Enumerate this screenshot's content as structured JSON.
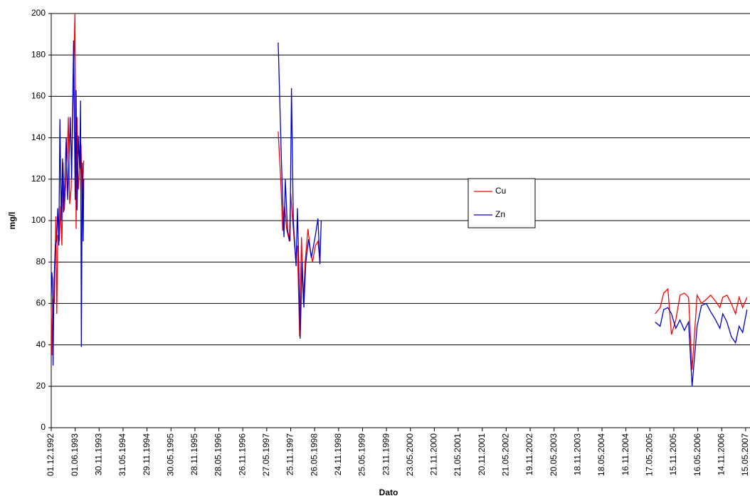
{
  "chart_data": {
    "type": "line",
    "xlabel": "Dato",
    "ylabel": "mg/l",
    "ylim": [
      0,
      200
    ],
    "yticks": [
      0,
      20,
      40,
      60,
      80,
      100,
      120,
      140,
      160,
      180,
      200
    ],
    "xlim": [
      "01.12.1992",
      "17.06.2007"
    ],
    "xticks": [
      "01.12.1992",
      "01.06.1993",
      "30.11.1993",
      "31.05.1994",
      "29.11.1994",
      "30.05.1995",
      "28.11.1995",
      "28.05.1996",
      "26.11.1996",
      "27.05.1997",
      "25.11.1997",
      "26.05.1998",
      "24.11.1998",
      "25.05.1999",
      "23.11.1999",
      "23.05.2000",
      "21.11.2000",
      "21.05.2001",
      "20.11.2001",
      "21.05.2002",
      "19.11.2002",
      "20.05.2003",
      "18.11.2003",
      "18.05.2004",
      "16.11.2004",
      "17.05.2005",
      "15.11.2005",
      "16.05.2006",
      "14.11.2006",
      "15.05.2007"
    ],
    "grid": true,
    "legend": "right",
    "series": [
      {
        "name": "Cu",
        "color": "#ff0000",
        "x": [
          "01.12.1992",
          "06.12.1992",
          "14.12.1992",
          "25.12.1992",
          "05.01.1993",
          "12.01.1993",
          "20.01.1993",
          "01.02.1993",
          "10.02.1993",
          "20.02.1993",
          "01.03.1993",
          "10.03.1993",
          "20.03.1993",
          "01.04.1993",
          "10.04.1993",
          "20.04.1993",
          "01.05.1993",
          "20.05.1993",
          "30.05.1993",
          "08.06.1993",
          "15.06.1993",
          "25.06.1993",
          "05.07.1993",
          "15.07.1993",
          "25.07.1993",
          "05.08.1993",
          null,
          "22.08.1997",
          "10.09.1997",
          "25.09.1997",
          "10.10.1997",
          "25.10.1997",
          "15.11.1997",
          "25.11.1997",
          "10.12.1997",
          "01.01.1998",
          "15.01.1998",
          "01.02.1998",
          "15.02.1998",
          "01.03.1998",
          "15.03.1998",
          "05.04.1998",
          "25.04.1998",
          "10.05.1998",
          "01.06.1998",
          "20.06.1998",
          "05.07.1998",
          null,
          "26.06.2005",
          "03.08.2005",
          "30.08.2005",
          "01.10.2005",
          "28.10.2005",
          "30.11.2005",
          "01.01.2006",
          "03.02.2006",
          "07.03.2006",
          "03.04.2006",
          "11.05.2006",
          "13.06.2006",
          "20.07.2006",
          "22.08.2006",
          "29.09.2006",
          "31.10.2006",
          "22.11.2006",
          "24.12.2006",
          "26.01.2007",
          "27.02.2007",
          "26.03.2007",
          "22.04.2007",
          "25.05.2007"
        ],
        "values": [
          58,
          35,
          62,
          60,
          102,
          55,
          93,
          90,
          107,
          88,
          128,
          105,
          115,
          130,
          150,
          108,
          115,
          170,
          200,
          96,
          150,
          115,
          125,
          137,
          110,
          129,
          null,
          143,
          120,
          95,
          107,
          96,
          90,
          113,
          100,
          82,
          88,
          44,
          92,
          60,
          80,
          96,
          85,
          80,
          88,
          90,
          80,
          null,
          55,
          58,
          65,
          67,
          45,
          52,
          64,
          65,
          63,
          28,
          64,
          60,
          62,
          64,
          61,
          58,
          63,
          64,
          60,
          55,
          63,
          58,
          63
        ]
      },
      {
        "name": "Zn",
        "color": "#0000cc",
        "x": [
          "01.12.1992",
          "05.12.1992",
          "10.12.1992",
          "15.12.1992",
          "22.12.1992",
          "01.01.1993",
          "10.01.1993",
          "20.01.1993",
          "28.01.1993",
          "05.02.1993",
          "15.02.1993",
          "25.02.1993",
          "05.03.1993",
          "15.03.1993",
          "25.03.1993",
          "05.04.1993",
          "15.04.1993",
          "25.04.1993",
          "05.05.1993",
          "20.05.1993",
          "01.06.1993",
          "08.06.1993",
          "15.06.1993",
          "25.06.1993",
          "05.07.1993",
          "12.07.1993",
          "18.07.1993",
          "25.07.1993",
          "01.08.1993",
          "05.08.1993",
          null,
          "22.08.1997",
          "15.09.1997",
          "05.10.1997",
          "15.10.1997",
          "01.11.1997",
          "20.11.1997",
          "01.12.1997",
          "15.12.1997",
          "05.01.1998",
          "15.01.1998",
          "25.01.1998",
          "05.02.1998",
          "20.02.1998",
          "05.03.1998",
          "20.03.1998",
          "10.04.1998",
          "01.05.1998",
          "01.06.1998",
          "20.06.1998",
          "05.07.1998",
          "15.07.1998",
          null,
          "26.06.2005",
          "03.08.2005",
          "30.08.2005",
          "01.10.2005",
          "28.10.2005",
          "30.11.2005",
          "01.01.2006",
          "03.02.2006",
          "07.03.2006",
          "03.04.2006",
          "11.05.2006",
          "13.06.2006",
          "20.07.2006",
          "22.08.2006",
          "29.09.2006",
          "31.10.2006",
          "22.11.2006",
          "24.12.2006",
          "26.01.2007",
          "27.02.2007",
          "26.03.2007",
          "22.04.2007",
          "25.05.2007"
        ],
        "values": [
          64,
          75,
          72,
          30,
          70,
          88,
          90,
          106,
          88,
          149,
          100,
          130,
          104,
          120,
          140,
          110,
          130,
          150,
          120,
          187,
          110,
          163,
          105,
          141,
          125,
          158,
          39,
          128,
          90,
          120,
          null,
          186,
          130,
          92,
          120,
          95,
          90,
          164,
          100,
          78,
          106,
          80,
          43,
          80,
          58,
          80,
          91,
          82,
          93,
          101,
          79,
          100,
          null,
          51,
          49,
          57,
          58,
          55,
          48,
          52,
          47,
          51,
          20,
          49,
          59,
          60,
          56,
          52,
          48,
          55,
          51,
          44,
          41,
          49,
          46,
          57
        ]
      }
    ]
  }
}
